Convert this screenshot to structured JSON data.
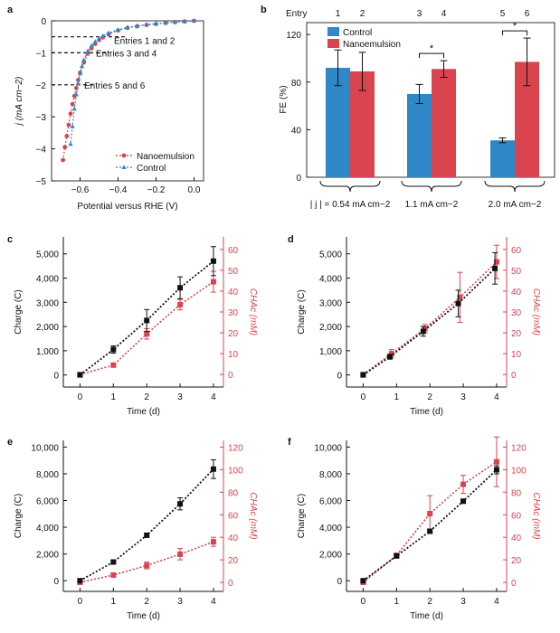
{
  "chart_data": [
    {
      "panel": "a",
      "type": "line",
      "xlabel": "Potential versus RHE (V)",
      "ylabel": "j (mA cm−2)",
      "xlim": [
        -0.75,
        0.05
      ],
      "ylim": [
        -5,
        0
      ],
      "xticks": [
        -0.6,
        -0.4,
        -0.2,
        0.0
      ],
      "xtick_labels": [
        "−0.6",
        "−0.4",
        "−0.2",
        "0.0"
      ],
      "yticks": [
        -5,
        -4,
        -3,
        -2,
        -1,
        0
      ],
      "ytick_labels": [
        "−5",
        "−4",
        "−3",
        "−2",
        "−1",
        "0"
      ],
      "series": [
        {
          "name": "Nanoemulsion",
          "color": "#d9444f",
          "marker": "circle",
          "x": [
            0.0,
            -0.05,
            -0.1,
            -0.15,
            -0.2,
            -0.25,
            -0.3,
            -0.35,
            -0.4,
            -0.45,
            -0.48,
            -0.5,
            -0.52,
            -0.54,
            -0.56,
            -0.58,
            -0.6,
            -0.61,
            -0.62,
            -0.63,
            -0.64,
            -0.65,
            -0.66,
            -0.67,
            -0.68,
            -0.69
          ],
          "y": [
            0.0,
            -0.02,
            -0.04,
            -0.07,
            -0.1,
            -0.13,
            -0.17,
            -0.22,
            -0.3,
            -0.42,
            -0.52,
            -0.6,
            -0.72,
            -0.86,
            -1.03,
            -1.3,
            -1.62,
            -1.85,
            -2.1,
            -2.35,
            -2.6,
            -2.9,
            -3.25,
            -3.6,
            -3.95,
            -4.35
          ]
        },
        {
          "name": "Control",
          "color": "#2f87c8",
          "marker": "triangle",
          "x": [
            0.0,
            -0.05,
            -0.1,
            -0.15,
            -0.2,
            -0.25,
            -0.3,
            -0.35,
            -0.4,
            -0.45,
            -0.48,
            -0.5,
            -0.52,
            -0.54,
            -0.56,
            -0.58,
            -0.59,
            -0.6,
            -0.61,
            -0.62,
            -0.63,
            -0.64,
            -0.65
          ],
          "y": [
            0.0,
            -0.02,
            -0.04,
            -0.06,
            -0.09,
            -0.12,
            -0.16,
            -0.21,
            -0.28,
            -0.38,
            -0.47,
            -0.55,
            -0.65,
            -0.78,
            -0.95,
            -1.22,
            -1.42,
            -1.65,
            -1.95,
            -2.3,
            -2.75,
            -3.3,
            -3.85
          ]
        }
      ],
      "annotations": [
        {
          "text": "Entries 1 and 2",
          "j": -0.5
        },
        {
          "text": "Entries 3 and 4",
          "j": -1.0
        },
        {
          "text": "Entries 5 and 6",
          "j": -2.0
        }
      ]
    },
    {
      "panel": "b",
      "type": "bar",
      "ylabel": "FE (%)",
      "ylim": [
        0,
        130
      ],
      "yticks": [
        0,
        40,
        80,
        120
      ],
      "entry_label": "Entry",
      "entries": [
        "1",
        "2",
        "3",
        "4",
        "5",
        "6"
      ],
      "groups": [
        "| j | = 0.54 mA cm−2",
        "1.1 mA cm−2",
        "2.0 mA cm−2"
      ],
      "series": [
        {
          "name": "Control",
          "color": "#2f87c8",
          "values": [
            92,
            70,
            31
          ],
          "errors": [
            15,
            8,
            2
          ]
        },
        {
          "name": "Nanoemulsion",
          "color": "#d9444f",
          "values": [
            89,
            91,
            97
          ],
          "errors": [
            16,
            7,
            20
          ]
        }
      ],
      "significance": [
        "",
        "*",
        "*"
      ]
    },
    {
      "panel": "c",
      "type": "scatter",
      "xlabel": "Time (d)",
      "ylabel": "Charge (C)",
      "y2label": "CHAc (mM)",
      "xlim": [
        -0.5,
        4.3
      ],
      "xticks": [
        0,
        1,
        2,
        3,
        4
      ],
      "ylim": [
        -500,
        5700
      ],
      "yticks": [
        0,
        1000,
        2000,
        3000,
        4000,
        5000
      ],
      "ytick_labels": [
        "0",
        "1,000",
        "2,000",
        "3,000",
        "4,000",
        "5,000"
      ],
      "y2lim": [
        -6,
        66
      ],
      "y2ticks": [
        0,
        10,
        20,
        30,
        40,
        50,
        60
      ],
      "charge": {
        "x": [
          0,
          1,
          2,
          3,
          4
        ],
        "y": [
          0,
          1050,
          2250,
          3600,
          4700
        ],
        "err": [
          50,
          150,
          450,
          450,
          600
        ]
      },
      "conc": {
        "x": [
          0,
          1,
          2,
          3,
          4
        ],
        "y": [
          0,
          4.5,
          19.5,
          33.5,
          44.5
        ],
        "err": [
          0.5,
          0.8,
          2.5,
          2.5,
          5
        ]
      }
    },
    {
      "panel": "d",
      "type": "scatter",
      "xlabel": "Time (d)",
      "ylabel": "Charge (C)",
      "y2label": "CHAc (mM)",
      "xlim": [
        -0.5,
        4.3
      ],
      "xticks": [
        0,
        1,
        2,
        3,
        4
      ],
      "ylim": [
        -500,
        5700
      ],
      "yticks": [
        0,
        1000,
        2000,
        3000,
        4000,
        5000
      ],
      "ytick_labels": [
        "0",
        "1,000",
        "2,000",
        "3,000",
        "4,000",
        "5,000"
      ],
      "y2lim": [
        -6,
        66
      ],
      "y2ticks": [
        0,
        10,
        20,
        30,
        40,
        50,
        60
      ],
      "charge": {
        "x": [
          0,
          0.8,
          1.8,
          2.85,
          3.95
        ],
        "y": [
          0,
          750,
          1800,
          2950,
          4400
        ],
        "err": [
          50,
          100,
          200,
          550,
          650
        ]
      },
      "conc": {
        "x": [
          0,
          0.85,
          1.85,
          2.9,
          4.0
        ],
        "y": [
          0,
          10,
          22,
          37,
          54
        ],
        "err": [
          0.5,
          2,
          2,
          12,
          8
        ]
      }
    },
    {
      "panel": "e",
      "type": "scatter",
      "xlabel": "Time (d)",
      "ylabel": "Charge (C)",
      "y2label": "CHAc (mM)",
      "xlim": [
        -0.5,
        4.3
      ],
      "xticks": [
        0,
        1,
        2,
        3,
        4
      ],
      "ylim": [
        -800,
        10500
      ],
      "yticks": [
        0,
        2000,
        4000,
        6000,
        8000,
        10000
      ],
      "ytick_labels": [
        "0",
        "2,000",
        "4,000",
        "6,000",
        "8,000",
        "10,000"
      ],
      "y2lim": [
        -8,
        126
      ],
      "y2ticks": [
        0,
        20,
        40,
        60,
        80,
        100,
        120
      ],
      "charge": {
        "x": [
          0,
          1,
          2,
          3,
          4
        ],
        "y": [
          0,
          1400,
          3400,
          5750,
          8350
        ],
        "err": [
          100,
          120,
          150,
          450,
          700
        ]
      },
      "conc": {
        "x": [
          0,
          1,
          2,
          3,
          4
        ],
        "y": [
          0,
          6.5,
          15,
          25,
          36
        ],
        "err": [
          1,
          1.5,
          3,
          5,
          4
        ]
      }
    },
    {
      "panel": "f",
      "type": "scatter",
      "xlabel": "Time (d)",
      "ylabel": "Charge (C)",
      "y2label": "CHAc (mM)",
      "xlim": [
        -0.5,
        4.3
      ],
      "xticks": [
        0,
        1,
        2,
        3,
        4
      ],
      "ylim": [
        -800,
        10500
      ],
      "yticks": [
        0,
        2000,
        4000,
        6000,
        8000,
        10000
      ],
      "ytick_labels": [
        "0",
        "2,000",
        "4,000",
        "6,000",
        "8,000",
        "10,000"
      ],
      "y2lim": [
        -8,
        126
      ],
      "y2ticks": [
        0,
        20,
        40,
        60,
        80,
        100,
        120
      ],
      "charge": {
        "x": [
          0,
          1,
          2,
          3,
          4
        ],
        "y": [
          0,
          1850,
          3700,
          5950,
          8300
        ],
        "err": [
          100,
          100,
          150,
          150,
          300
        ]
      },
      "conc": {
        "x": [
          0,
          1,
          2,
          3,
          4
        ],
        "y": [
          0,
          24,
          61,
          87,
          107
        ],
        "err": [
          1,
          1,
          16,
          8,
          22
        ]
      }
    }
  ],
  "panel_labels": [
    "a",
    "b",
    "c",
    "d",
    "e",
    "f"
  ],
  "colors": {
    "red": "#d9444f",
    "blue": "#2f87c8",
    "black": "#111111"
  }
}
